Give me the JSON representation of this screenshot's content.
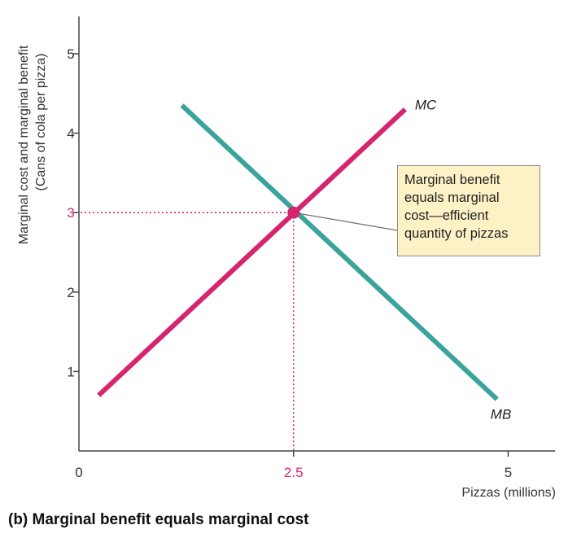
{
  "chart_data": {
    "type": "line",
    "xlabel": "Pizzas (millions)",
    "ylabel_line1": "Marginal cost and marginal benefit",
    "ylabel_line2": "(Cans of cola per pizza)",
    "caption": "(b) Marginal benefit equals marginal cost",
    "xlim": [
      0,
      5.5
    ],
    "ylim": [
      0,
      5.5
    ],
    "x_ticks": [
      {
        "value": 0,
        "label": "0"
      },
      {
        "value": 2.5,
        "label": "2.5"
      },
      {
        "value": 5,
        "label": "5"
      }
    ],
    "y_ticks": [
      {
        "value": 1,
        "label": "1"
      },
      {
        "value": 2,
        "label": "2"
      },
      {
        "value": 3,
        "label": "3"
      },
      {
        "value": 4,
        "label": "4"
      },
      {
        "value": 5,
        "label": "5"
      }
    ],
    "series": [
      {
        "name": "MC",
        "color": "#d6246e",
        "points": [
          [
            0.23,
            0.7
          ],
          [
            3.8,
            4.3
          ]
        ]
      },
      {
        "name": "MB",
        "color": "#3aa39b",
        "points": [
          [
            1.2,
            4.35
          ],
          [
            4.87,
            0.65
          ]
        ]
      }
    ],
    "equilibrium": {
      "x": 2.5,
      "y": 3,
      "x_label": "2.5",
      "y_label": "3",
      "color": "#d6246e"
    },
    "annotation": {
      "lines": [
        "Marginal benefit",
        "equals marginal",
        "cost—efficient",
        "quantity of pizzas"
      ]
    },
    "grid": false
  }
}
